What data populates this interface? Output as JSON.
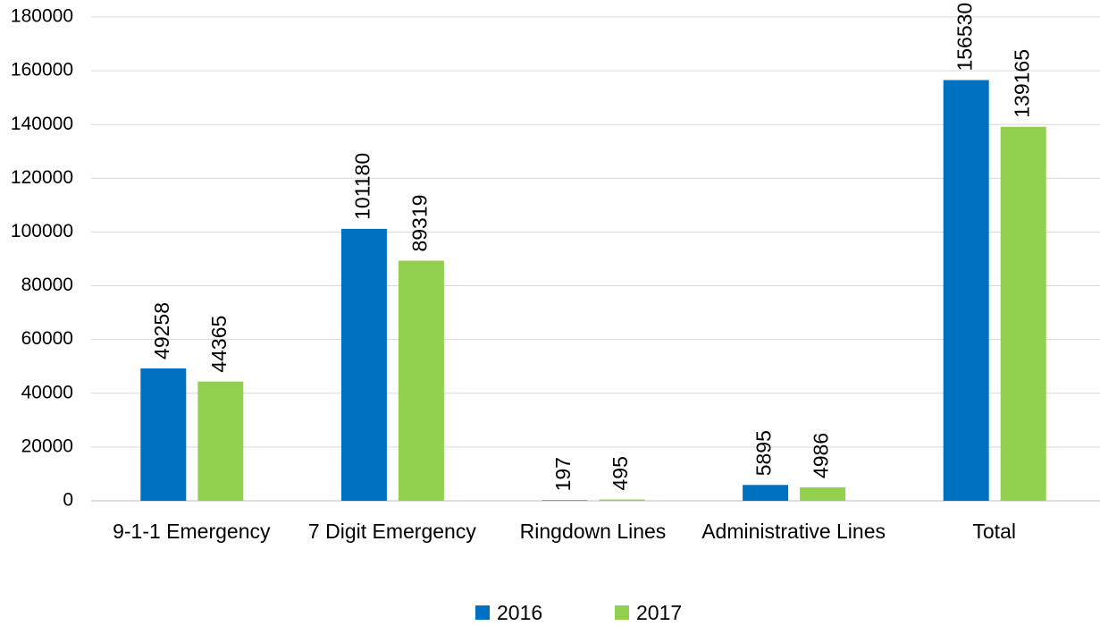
{
  "chart_data": {
    "type": "bar",
    "categories": [
      "9-1-1 Emergency",
      "7 Digit Emergency",
      "Ringdown Lines",
      "Administrative Lines",
      "Total"
    ],
    "series": [
      {
        "name": "2016",
        "color": "#0070c0",
        "values": [
          49258,
          101180,
          197,
          5895,
          156530
        ]
      },
      {
        "name": "2017",
        "color": "#92d050",
        "values": [
          44365,
          89319,
          495,
          4986,
          139165
        ]
      }
    ],
    "ylim": [
      0,
      180000
    ],
    "yticks": [
      0,
      20000,
      40000,
      60000,
      80000,
      100000,
      120000,
      140000,
      160000,
      180000
    ],
    "grid": true,
    "legend": "bottom"
  }
}
